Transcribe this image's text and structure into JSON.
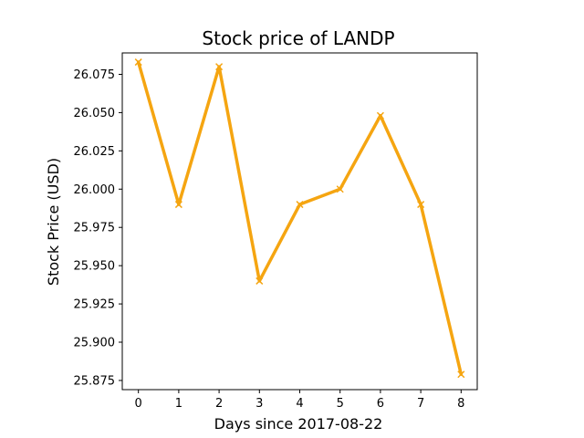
{
  "chart_data": {
    "type": "line",
    "title": "Stock price of LANDP",
    "xlabel": "Days since 2017-08-22",
    "ylabel": "Stock Price (USD)",
    "x": [
      0,
      1,
      2,
      3,
      4,
      5,
      6,
      7,
      8
    ],
    "xticks": [
      "0",
      "1",
      "2",
      "3",
      "4",
      "5",
      "6",
      "7",
      "8"
    ],
    "yticks": [
      "25.875",
      "25.900",
      "25.925",
      "25.950",
      "25.975",
      "26.000",
      "26.025",
      "26.050",
      "26.075"
    ],
    "xlim": [
      -0.4,
      8.4
    ],
    "ylim": [
      25.869,
      26.089
    ],
    "grid": false,
    "series": [
      {
        "values": [
          26.083,
          25.99,
          26.08,
          25.94,
          25.99,
          26.0,
          26.048,
          25.99,
          25.879
        ],
        "color": "#f5a511",
        "marker": "x"
      }
    ]
  }
}
